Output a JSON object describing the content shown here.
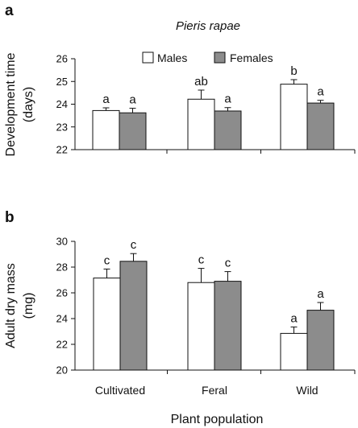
{
  "figure": {
    "panel_labels": [
      "a",
      "b"
    ],
    "xlabel": "Plant population"
  },
  "legend": [
    "Males",
    "Females"
  ],
  "colors": {
    "Males": "#ffffff",
    "Females": "#8c8c8c",
    "axis": "#111111"
  },
  "chart_data": [
    {
      "type": "bar",
      "panel": "a",
      "title": "Pieris rapae",
      "ylabel_line1": "Development  time",
      "ylabel_line2": "(days)",
      "ylim": [
        22,
        26
      ],
      "yticks": [
        22,
        23,
        24,
        25,
        26
      ],
      "categories": [
        "Cultivated",
        "Feral",
        "Wild"
      ],
      "show_category_labels": false,
      "series": [
        {
          "name": "Males",
          "values": [
            23.72,
            24.22,
            24.88
          ],
          "errors": [
            0.12,
            0.4,
            0.2
          ],
          "letters": [
            "a",
            "ab",
            "b"
          ]
        },
        {
          "name": "Females",
          "values": [
            23.62,
            23.7,
            24.05
          ],
          "errors": [
            0.2,
            0.15,
            0.12
          ],
          "letters": [
            "a",
            "a",
            "a"
          ]
        }
      ],
      "legend_position": "top-center",
      "grid": false
    },
    {
      "type": "bar",
      "panel": "b",
      "title": "",
      "ylabel_line1": "Adult dry mass",
      "ylabel_line2": "(mg)",
      "ylim": [
        20,
        30
      ],
      "yticks": [
        20,
        22,
        24,
        26,
        28,
        30
      ],
      "categories": [
        "Cultivated",
        "Feral",
        "Wild"
      ],
      "show_category_labels": true,
      "series": [
        {
          "name": "Males",
          "values": [
            27.15,
            26.8,
            22.85
          ],
          "errors": [
            0.7,
            1.1,
            0.5
          ],
          "letters": [
            "c",
            "c",
            "a"
          ]
        },
        {
          "name": "Females",
          "values": [
            28.45,
            26.9,
            24.65
          ],
          "errors": [
            0.6,
            0.75,
            0.6
          ],
          "letters": [
            "c",
            "c",
            "a"
          ]
        }
      ],
      "grid": false
    }
  ]
}
